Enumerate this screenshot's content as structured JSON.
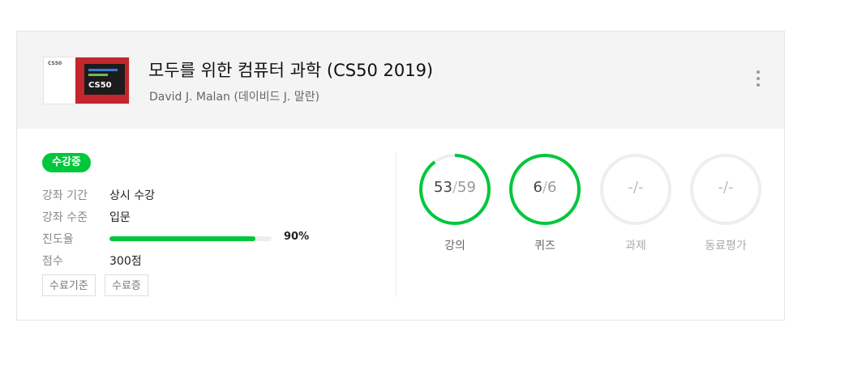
{
  "course": {
    "title": "모두를 위한 컴퓨터 과학 (CS50 2019)",
    "instructor": "David J. Malan (데이비드 J. 말란)",
    "thumbnail": {
      "tag": "CS50",
      "screen_text": "CS50"
    }
  },
  "status_badge": "수강중",
  "info": {
    "period_label": "강좌 기간",
    "period_value": "상시 수강",
    "level_label": "강좌 수준",
    "level_value": "입문",
    "progress_label": "진도율",
    "progress_value": 0.9,
    "progress_text": "90%",
    "score_label": "점수",
    "score_value": "300점"
  },
  "buttons": {
    "criteria": "수료기준",
    "certificate": "수료증"
  },
  "stats": [
    {
      "label": "강의",
      "done": "53",
      "sep": "/",
      "total": "59",
      "ratio": 0.898,
      "active": true
    },
    {
      "label": "퀴즈",
      "done": "6",
      "sep": "/",
      "total": "6",
      "ratio": 1.0,
      "active": true
    },
    {
      "label": "과제",
      "done": "-",
      "sep": "/",
      "total": "-",
      "ratio": 0,
      "active": false
    },
    {
      "label": "동료평가",
      "done": "-",
      "sep": "/",
      "total": "-",
      "ratio": 0,
      "active": false
    }
  ],
  "colors": {
    "accent": "#00c73c",
    "ring_track": "#eceeef",
    "header_bg": "#f4f4f4"
  },
  "icons": {
    "menu": "kebab-menu-icon"
  }
}
